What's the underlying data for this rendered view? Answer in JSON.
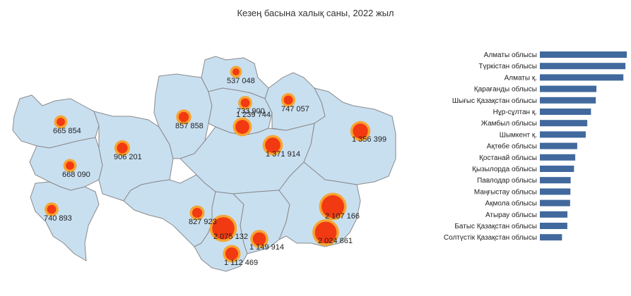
{
  "title": "Кезең басына халық саны, 2022 жыл",
  "colors": {
    "region_fill": "#c8dff0",
    "region_border": "#8a8a8a",
    "bubble_outer": "#f7a531",
    "bubble_inner": "#f23a12",
    "bar": "#41699e"
  },
  "chart_data": [
    {
      "type": "map",
      "title": "Кезең басына халық саны, 2022 жыл",
      "points": [
        {
          "label": "537 048",
          "value": 537048
        },
        {
          "label": "733 900",
          "value": 733900
        },
        {
          "label": "747 057",
          "value": 747057
        },
        {
          "label": "665 854",
          "value": 665854
        },
        {
          "label": "857 858",
          "value": 857858
        },
        {
          "label": "1 239 744",
          "value": 1239744
        },
        {
          "label": "1 356 399",
          "value": 1356399
        },
        {
          "label": "906 201",
          "value": 906201
        },
        {
          "label": "1 371 914",
          "value": 1371914
        },
        {
          "label": "668 090",
          "value": 668090
        },
        {
          "label": "740 893",
          "value": 740893
        },
        {
          "label": "827 923",
          "value": 827923
        },
        {
          "label": "2 075 132",
          "value": 2075132
        },
        {
          "label": "2 107 166",
          "value": 2107166
        },
        {
          "label": "1 149 914",
          "value": 1149914
        },
        {
          "label": "2 024 861",
          "value": 2024861
        },
        {
          "label": "1 112 469",
          "value": 1112469
        }
      ]
    },
    {
      "type": "bar",
      "orientation": "horizontal",
      "categories": [
        "Алматы облысы",
        "Түркістан облысы",
        "Алматы қ.",
        "Қарағанды облысы",
        "Шығыс Қазақстан облысы",
        "Нұр-сұлтан қ.",
        "Жамбыл облысы",
        "Шымкент қ.",
        "Ақтөбе облысы",
        "Қостанай облысы",
        "Қызылорда облысы",
        "Павлодар облысы",
        "Маңғыстау облысы",
        "Ақмола облысы",
        "Атырау облысы",
        "Батыс Қазақстан облысы",
        "Солтүстік Қазақстан облысы"
      ],
      "values": [
        2107166,
        2075132,
        2024861,
        1371914,
        1356399,
        1239744,
        1149914,
        1112469,
        906201,
        857858,
        827923,
        747057,
        740893,
        733900,
        668090,
        665854,
        537048
      ]
    }
  ]
}
